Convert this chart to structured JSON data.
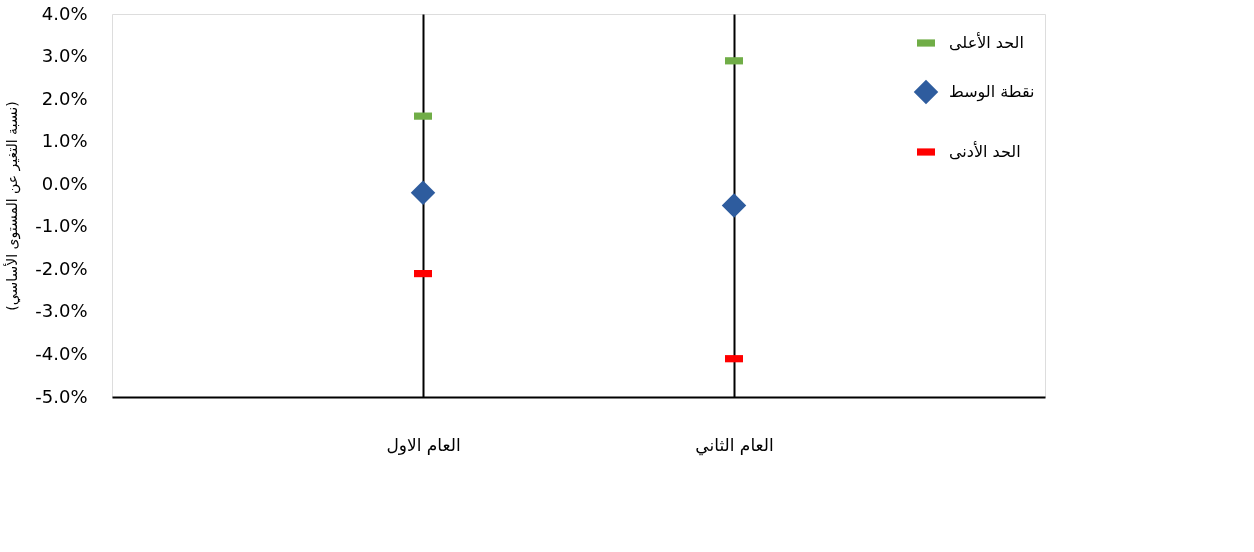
{
  "chart_data": {
    "type": "scatter",
    "ylabel": "(نسبة التغير عن المستوى الأساسي)",
    "categories": [
      "العام الاول",
      "العام الثاني"
    ],
    "series": [
      {
        "name": "الحد الأعلى",
        "color": "#70ad47",
        "values": [
          1.6,
          2.9
        ]
      },
      {
        "name": "نقطة الوسط",
        "color": "#2e5c9e",
        "marker": "diamond",
        "values": [
          -0.2,
          -0.5
        ]
      },
      {
        "name": "الحد الأدنى",
        "color": "#ff0000",
        "values": [
          -2.1,
          -4.1
        ]
      }
    ],
    "ylim": [
      -5,
      4
    ],
    "yticks": [
      {
        "value": 4,
        "label": "4.0%"
      },
      {
        "value": 3,
        "label": "3.0%"
      },
      {
        "value": 2,
        "label": "2.0%"
      },
      {
        "value": 1,
        "label": "1.0%"
      },
      {
        "value": 0,
        "label": "0.0%"
      },
      {
        "value": -1,
        "label": "-1.0%"
      },
      {
        "value": -2,
        "label": "-2.0%"
      },
      {
        "value": -3,
        "label": "-3.0%"
      },
      {
        "value": -4,
        "label": "-4.0%"
      },
      {
        "value": -5,
        "label": "-5.0%"
      }
    ],
    "grid": "x",
    "legend": "top right"
  }
}
